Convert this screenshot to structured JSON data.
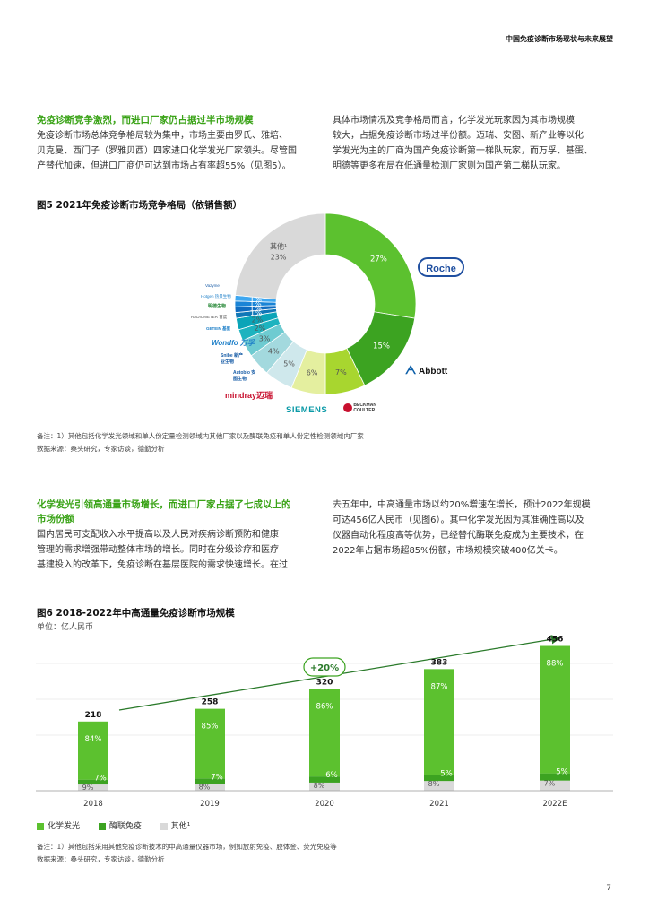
{
  "header": {
    "title": "中国免疫诊断市场现状与未来展望"
  },
  "section1": {
    "title": "免疫诊断竞争激烈，而进口厂家仍占据过半市场规模",
    "left_lines": [
      "免疫诊断市场总体竞争格局较为集中，市场主要由罗氏、雅培、",
      "贝克曼、西门子（罗雅贝西）四家进口化学发光厂家领头。尽管国",
      "产替代加速，但进口厂商仍可达到市场占有率超55%（见图5）。"
    ],
    "right_lines": [
      "具体市场情况及竞争格局而言，化学发光玩家因为其市场规模",
      "较大，占据免疫诊断市场过半份额。迈瑞、安图、新产业等以化",
      "学发光为主的厂商为国产免疫诊断第一梯队玩家，而万孚、基蛋、",
      "明德等更多布局在低通量检测厂家则为国产第二梯队玩家。"
    ]
  },
  "figure5": {
    "title": "图5 2021年免疫诊断市场竞争格局（依销售额）",
    "others_label": "其他¹",
    "logos": {
      "roche": "Roche",
      "abbott": "Abbott",
      "siemens": "SIEMENS",
      "beckman": "BECKMAN COULTER",
      "mindray": "mindray迈瑞",
      "autobio": "Autobio 安图生物",
      "snibe": "Snibe 新产业生物",
      "wondfo": "Wondfo 万孚",
      "getein": "GETEIN 基蛋",
      "radiometer": "RADIOMETER 雷度",
      "ge": "明德生物",
      "hotgen": "Hotgen 热景生物",
      "vazyme": "Vazyme"
    },
    "note": "备注：1）其他包括化学发光领域和单人份定量检测领域内其他厂家以及酶联免疫和单人份定性检测领域内厂家",
    "source": "数据来源：桑头研究，专家访谈，德勤分析"
  },
  "section2": {
    "title_lines": [
      "化学发光引领高通量市场增长，而进口厂家占据了七成以上的",
      "市场份额"
    ],
    "left_lines": [
      "国内居民可支配收入水平提高以及人民对疾病诊断预防和健康",
      "管理的需求增强带动整体市场的增长。同时在分级诊疗和医疗",
      "基建投入的改革下，免疫诊断在基层医院的需求快速增长。在过"
    ],
    "right_lines": [
      "去五年中，中高通量市场以约20%增速在增长，预计2022年规模",
      "可达456亿人民币（见图6）。其中化学发光因为其准确性高以及",
      "仪器自动化程度高等优势，已经替代酶联免疫成为主要技术，在",
      "2022年占据市场超85%份额，市场规模突破400亿关卡。"
    ]
  },
  "figure6": {
    "title": "图6 2018-2022年中高通量免疫诊断市场规模",
    "unit": "单位：亿人民币",
    "growth": "+20%",
    "legend": [
      "化学发光",
      "酶联免疫",
      "其他¹"
    ],
    "note": "备注：1）其他包括采用其他免疫诊断技术的中高通量仪器市场，例如放射免疫、胶体金、荧光免疫等",
    "source": "数据来源：桑头研究，专家访谈，德勤分析"
  },
  "page_number": "7",
  "chart_data": [
    {
      "type": "pie",
      "title": "图5 2021年免疫诊断市场竞争格局（依销售额）",
      "categories": [
        "罗氏",
        "雅培",
        "贝克曼",
        "西门子",
        "迈瑞",
        "安图",
        "新产业",
        "万孚",
        "基蛋",
        "雷度",
        "明德",
        "热景",
        "诺唯赞",
        "其他¹"
      ],
      "values": [
        27,
        15,
        7,
        6,
        5,
        4,
        3,
        2,
        2,
        1,
        1,
        1,
        1,
        23
      ],
      "labels": [
        "27%",
        "15%",
        "7%",
        "6%",
        "5%",
        "4%",
        "3%",
        "2%",
        "2%",
        "1%",
        "1%",
        "1%",
        "1%",
        "23%"
      ],
      "colors": [
        "#5cc12f",
        "#3ca321",
        "#a8d62f",
        "#e4ef9f",
        "#cfe8ec",
        "#a3d9de",
        "#6ecbd1",
        "#1db3bf",
        "#0aa4b8",
        "#1177b7",
        "#0f6cc0",
        "#1a84d6",
        "#3ea7f0",
        "#d9d9d9"
      ]
    },
    {
      "type": "bar",
      "title": "图6 2018-2022年中高通量免疫诊断市场规模",
      "categories": [
        "2018",
        "2019",
        "2020",
        "2021",
        "2022E"
      ],
      "totals": [
        218,
        258,
        320,
        383,
        456
      ],
      "series": [
        {
          "name": "化学发光",
          "values": [
            84,
            85,
            86,
            87,
            88
          ],
          "color": "#5cc12f"
        },
        {
          "name": "酶联免疫",
          "values": [
            7,
            7,
            6,
            5,
            5
          ],
          "color": "#3ca321"
        },
        {
          "name": "其他¹",
          "values": [
            9,
            8,
            8,
            8,
            7
          ],
          "color": "#d9d9d9"
        }
      ],
      "ylim": [
        0,
        480
      ]
    }
  ]
}
